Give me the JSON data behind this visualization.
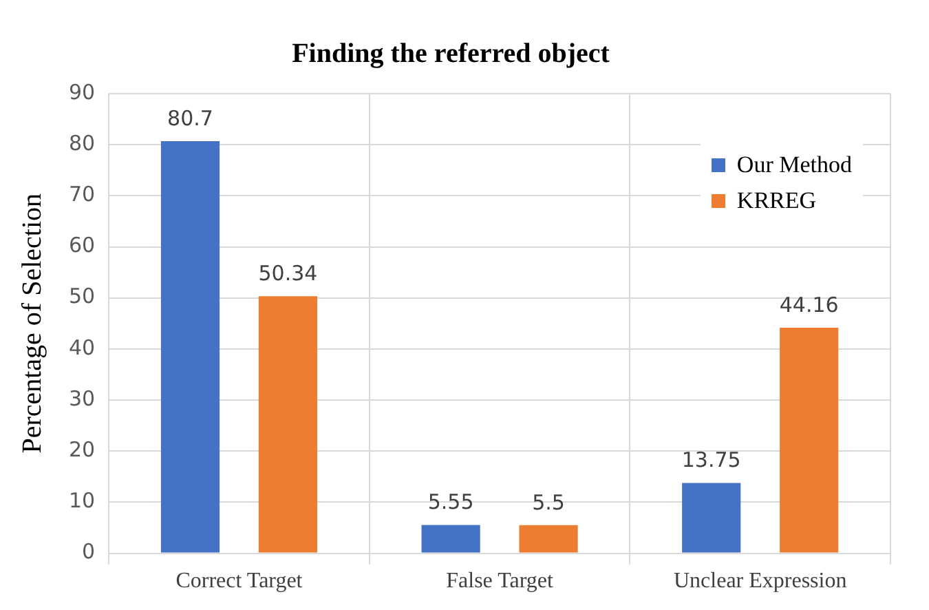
{
  "chart_data": {
    "type": "bar",
    "title": "Finding the referred object",
    "ylabel": "Percentage of Selection",
    "categories": [
      "Correct Target",
      "False Target",
      "Unclear Expression"
    ],
    "series": [
      {
        "name": "Our Method",
        "color": "#4472c4",
        "values": [
          80.7,
          5.55,
          13.75
        ]
      },
      {
        "name": "KRREG",
        "color": "#ed7d31",
        "values": [
          50.34,
          5.5,
          44.16
        ]
      }
    ],
    "ylim": [
      0,
      90
    ],
    "yticks": [
      0,
      10,
      20,
      30,
      40,
      50,
      60,
      70,
      80,
      90
    ],
    "grid": true,
    "legend": "top right",
    "data_labels": true
  }
}
